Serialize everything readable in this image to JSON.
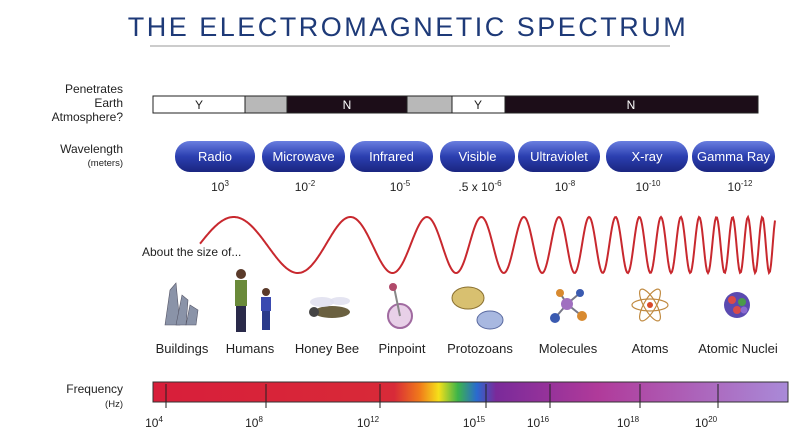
{
  "title": "THE ELECTROMAGNETIC SPECTRUM",
  "atmosphere": {
    "label": [
      "Penetrates",
      "Earth",
      "Atmosphere?"
    ],
    "segments": [
      "Y",
      "N",
      "Y",
      "N"
    ]
  },
  "wavelength": {
    "label": "Wavelength",
    "unit": "(meters)",
    "bands": [
      {
        "name": "Radio",
        "base": "10",
        "exponent": "3"
      },
      {
        "name": "Microwave",
        "base": "10",
        "exponent": "-2"
      },
      {
        "name": "Infrared",
        "base": "10",
        "exponent": "-5"
      },
      {
        "name": "Visible",
        "base": ".5 x 10",
        "exponent": "-6"
      },
      {
        "name": "Ultraviolet",
        "base": "10",
        "exponent": "-8"
      },
      {
        "name": "X-ray",
        "base": "10",
        "exponent": "-10"
      },
      {
        "name": "Gamma Ray",
        "base": "10",
        "exponent": "-12"
      }
    ]
  },
  "size_label": "About the size of...",
  "sizes": [
    "Buildings",
    "Humans",
    "Honey Bee",
    "Pinpoint",
    "Protozoans",
    "Molecules",
    "Atoms",
    "Atomic Nuclei"
  ],
  "frequency": {
    "label": "Frequency",
    "unit": "(Hz)",
    "ticks": [
      {
        "base": "10",
        "exponent": "4"
      },
      {
        "base": "10",
        "exponent": "8"
      },
      {
        "base": "10",
        "exponent": "12"
      },
      {
        "base": "10",
        "exponent": "15"
      },
      {
        "base": "10",
        "exponent": "16"
      },
      {
        "base": "10",
        "exponent": "18"
      },
      {
        "base": "10",
        "exponent": "20"
      }
    ]
  }
}
